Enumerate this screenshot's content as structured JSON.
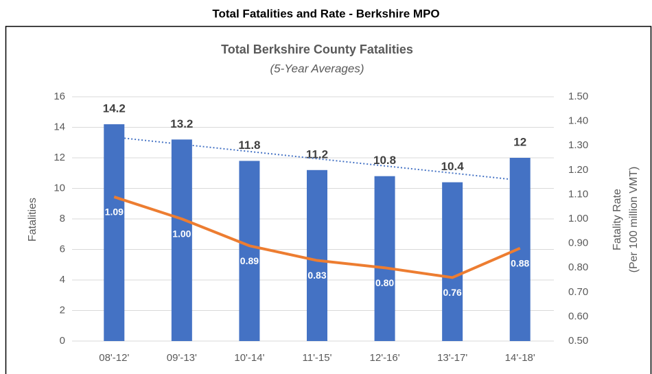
{
  "chart_data": {
    "type": "bar-line",
    "page_title": "Total Fatalities and Rate - Berkshire MPO",
    "title": "Total Berkshire County Fatalities",
    "subtitle": "(5-Year Averages)",
    "ylabel": "Fatalities",
    "y2label": [
      "Fatality Rate",
      "(Per 100 million VMT)"
    ],
    "categories": [
      "08'-12'",
      "09'-13'",
      "10'-14'",
      "11'-15'",
      "12'-16'",
      "13'-17'",
      "14'-18'"
    ],
    "series": [
      {
        "name": "Fatalities",
        "type": "bar",
        "color": "#4472c4",
        "values": [
          14.2,
          13.2,
          11.8,
          11.2,
          10.8,
          10.4,
          12
        ],
        "trendline": true
      },
      {
        "name": "Fatality Rate",
        "type": "line",
        "axis": "y2",
        "color": "#ed7d31",
        "values": [
          1.09,
          1.0,
          0.89,
          0.83,
          0.8,
          0.76,
          0.88
        ],
        "value_labels": [
          "1.09",
          "1.00",
          "0.89",
          "0.83",
          "0.80",
          "0.76",
          "0.88"
        ]
      }
    ],
    "ylim": [
      0,
      16
    ],
    "yticks": [
      0,
      2,
      4,
      6,
      8,
      10,
      12,
      14,
      16
    ],
    "y2lim": [
      0.5,
      1.5
    ],
    "y2ticks": [
      {
        "value": 0.5,
        "label": "0.50"
      },
      {
        "value": 0.6,
        "label": "0.60"
      },
      {
        "value": 0.7,
        "label": "0.70"
      },
      {
        "value": 0.8,
        "label": "0.80"
      },
      {
        "value": 0.9,
        "label": "0.90"
      },
      {
        "value": 1.0,
        "label": "1.00"
      },
      {
        "value": 1.1,
        "label": "1.10"
      },
      {
        "value": 1.2,
        "label": "1.20"
      },
      {
        "value": 1.3,
        "label": "1.30"
      },
      {
        "value": 1.4,
        "label": "1.40"
      },
      {
        "value": 1.5,
        "label": "1.50"
      }
    ],
    "grid": true
  }
}
